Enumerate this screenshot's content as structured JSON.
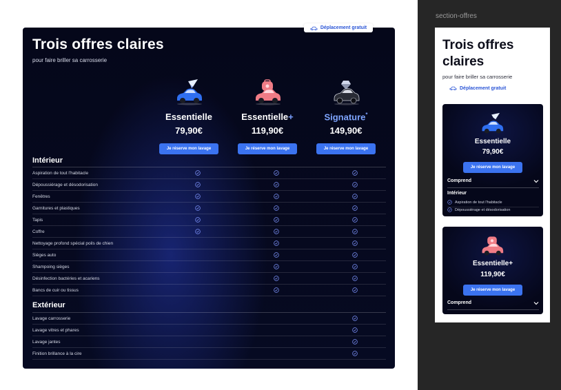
{
  "desktop": {
    "title": "Trois offres claires",
    "subtitle": "pour faire briller sa carrosserie",
    "badge": "Déplacement gratuit",
    "plans": [
      {
        "name": "Essentielle",
        "suffix": "",
        "price": "79,90€",
        "button": "Je réserve mon lavage",
        "icon": "car-plane-icon",
        "accent": "#2f6ff0"
      },
      {
        "name": "Essentielle",
        "suffix": "+",
        "price": "119,90€",
        "button": "Je réserve mon lavage",
        "icon": "car-bag-icon",
        "accent": "#f07c86"
      },
      {
        "name": "Signature",
        "suffix": "*",
        "price": "149,90€",
        "button": "Je réserve mon lavage",
        "icon": "car-diamond-icon",
        "accent": "#1a1c24"
      }
    ],
    "sections": [
      {
        "title": "Intérieur",
        "rows": [
          {
            "label": "Aspiration de tout l'habitacle",
            "plans": [
              true,
              true,
              true
            ]
          },
          {
            "label": "Dépoussiérage et désodorisation",
            "plans": [
              true,
              true,
              true
            ]
          },
          {
            "label": "Fenêtres",
            "plans": [
              true,
              true,
              true
            ]
          },
          {
            "label": "Garnitures et plastiques",
            "plans": [
              true,
              true,
              true
            ]
          },
          {
            "label": "Tapis",
            "plans": [
              true,
              true,
              true
            ]
          },
          {
            "label": "Coffre",
            "plans": [
              true,
              true,
              true
            ]
          },
          {
            "label": "Nettoyage profond spécial poils de chien",
            "plans": [
              false,
              true,
              true
            ]
          },
          {
            "label": "Sièges auto",
            "plans": [
              false,
              true,
              true
            ]
          },
          {
            "label": "Shampoing sièges",
            "plans": [
              false,
              true,
              true
            ]
          },
          {
            "label": "Désinfection bactéries et acariens",
            "plans": [
              false,
              true,
              true
            ]
          },
          {
            "label": "Bancs de cuir ou tissus",
            "plans": [
              false,
              true,
              true
            ]
          }
        ]
      },
      {
        "title": "Extérieur",
        "rows": [
          {
            "label": "Lavage carrosserie",
            "plans": [
              false,
              false,
              true
            ]
          },
          {
            "label": "Lavage vitres et phares",
            "plans": [
              false,
              false,
              true
            ]
          },
          {
            "label": "Lavage jantes",
            "plans": [
              false,
              false,
              true
            ]
          },
          {
            "label": "Finition brillance à la cire",
            "plans": [
              false,
              false,
              true
            ]
          }
        ]
      }
    ]
  },
  "side_panel": {
    "frame_label": "section-offres",
    "mobile": {
      "title": "Trois offres claires",
      "subtitle": "pour faire briller sa carrosserie",
      "badge": "Déplacement gratuit",
      "cards": [
        {
          "name": "Essentielle",
          "price": "79,90€",
          "button": "Je réserve mon lavage",
          "toggle": "Comprend",
          "category": "Intérieur",
          "items": [
            "Aspiration de tout l'habitacle",
            "Dépoussiérage et désodorisation"
          ]
        },
        {
          "name": "Essentielle+",
          "price": "119,90€",
          "button": "Je réserve mon lavage",
          "toggle": "Comprend"
        }
      ]
    }
  },
  "colors": {
    "panel_bg": "#05071a",
    "button": "#3b73f0",
    "check": "#7f95ff",
    "side_bg": "#262626"
  }
}
